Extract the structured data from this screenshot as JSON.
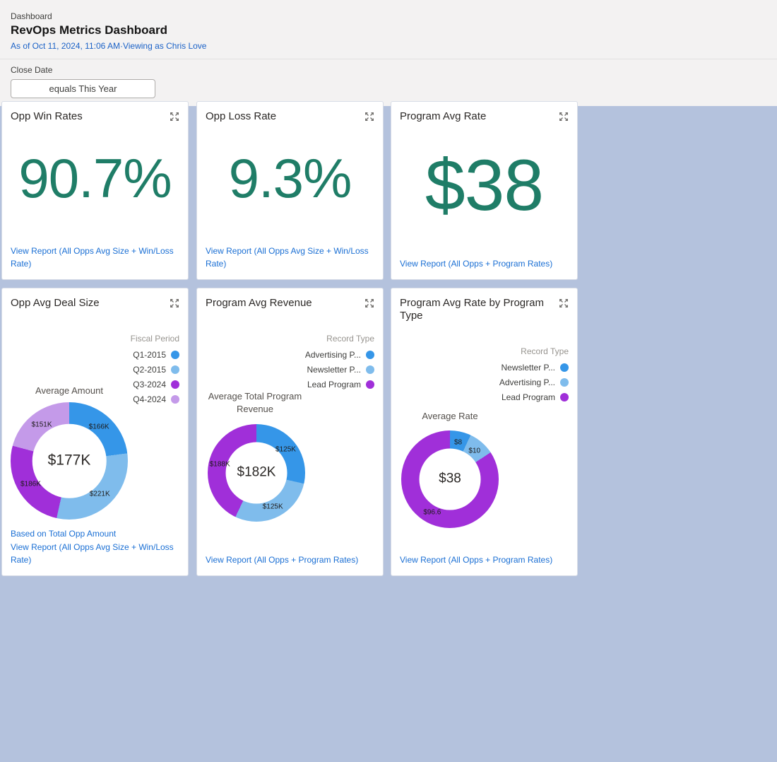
{
  "colors": {
    "page_background": "#b4c2dd",
    "header_background": "#f3f2f2",
    "metric_green": "#1f7d67",
    "link_blue": "#1a6fd4",
    "series_blue": "#3596e8",
    "series_light_blue": "#7fbcec",
    "series_purple": "#a02fd9",
    "series_lavender": "#c49ae9"
  },
  "header": {
    "eyebrow": "Dashboard",
    "title": "RevOps Metrics Dashboard",
    "subtitle": "As of Oct 11, 2024, 11:06 AM·Viewing as Chris Love",
    "filter_label": "Close Date",
    "filter_value": "equals This Year"
  },
  "cards": [
    {
      "type": "metric",
      "title": "Opp Win Rates",
      "value": "90.7%",
      "link": "View Report (All Opps Avg Size + Win/Loss Rate)"
    },
    {
      "type": "metric",
      "title": "Opp Loss Rate",
      "value": "9.3%",
      "link": "View Report (All Opps Avg Size + Win/Loss Rate)"
    },
    {
      "type": "metric",
      "title": "Program Avg Rate",
      "value": "$38",
      "link": "View Report (All Opps + Program Rates)"
    },
    {
      "type": "donut",
      "title": "Opp Avg Deal Size",
      "legend_title": "Fiscal Period",
      "legend": [
        {
          "label": "Q1-2015",
          "color": "#3596e8"
        },
        {
          "label": "Q2-2015",
          "color": "#7fbcec"
        },
        {
          "label": "Q3-2024",
          "color": "#a02fd9"
        },
        {
          "label": "Q4-2024",
          "color": "#c49ae9"
        }
      ],
      "chart_title": "Average Amount",
      "center_label": "$177K",
      "footnote": "Based on Total Opp Amount",
      "link": "View Report (All Opps Avg Size + Win/Loss Rate)"
    },
    {
      "type": "donut",
      "title": "Program Avg Revenue",
      "legend_title": "Record Type",
      "legend": [
        {
          "label": "Advertising P...",
          "color": "#3596e8"
        },
        {
          "label": "Newsletter P...",
          "color": "#7fbcec"
        },
        {
          "label": "Lead Program",
          "color": "#a02fd9"
        }
      ],
      "chart_title": "Average Total Program Revenue",
      "center_label": "$182K",
      "link": "View Report (All Opps + Program Rates)"
    },
    {
      "type": "donut",
      "title": "Program Avg Rate by Program Type",
      "legend_title": "Record Type",
      "legend": [
        {
          "label": "Newsletter P...",
          "color": "#3596e8"
        },
        {
          "label": "Advertising P...",
          "color": "#7fbcec"
        },
        {
          "label": "Lead Program",
          "color": "#a02fd9"
        }
      ],
      "chart_title": "Average Rate",
      "center_label": "$38",
      "link": "View Report (All Opps + Program Rates)"
    }
  ],
  "chart_data": [
    {
      "type": "pie",
      "title": "Average Amount",
      "legend_title": "Fiscal Period",
      "legend_position": "top-right",
      "center_label": "$177K",
      "units": "USD thousands",
      "slices": [
        {
          "label": "Q1-2015",
          "value": 166,
          "display": "$166K",
          "color": "#3596e8"
        },
        {
          "label": "Q2-2015",
          "value": 221,
          "display": "$221K",
          "color": "#7fbcec"
        },
        {
          "label": "Q3-2024",
          "value": 186,
          "display": "$186K",
          "color": "#a02fd9"
        },
        {
          "label": "Q4-2024",
          "value": 151,
          "display": "$151K",
          "color": "#c49ae9"
        }
      ]
    },
    {
      "type": "pie",
      "title": "Average Total Program Revenue",
      "legend_title": "Record Type",
      "legend_position": "top-right",
      "center_label": "$182K",
      "units": "USD thousands",
      "slices": [
        {
          "label": "Advertising P...",
          "value": 125,
          "display": "$125K",
          "color": "#3596e8"
        },
        {
          "label": "Newsletter P...",
          "value": 125,
          "display": "$125K",
          "color": "#7fbcec"
        },
        {
          "label": "Lead Program",
          "value": 188,
          "display": "$188K",
          "color": "#a02fd9"
        }
      ]
    },
    {
      "type": "pie",
      "title": "Average Rate",
      "legend_title": "Record Type",
      "legend_position": "top-right",
      "center_label": "$38",
      "units": "USD",
      "slices": [
        {
          "label": "Newsletter P...",
          "value": 8,
          "display": "$8",
          "color": "#3596e8"
        },
        {
          "label": "Advertising P...",
          "value": 10,
          "display": "$10",
          "color": "#7fbcec"
        },
        {
          "label": "Lead Program",
          "value": 96.6,
          "display": "$96.6",
          "color": "#a02fd9"
        }
      ]
    }
  ]
}
